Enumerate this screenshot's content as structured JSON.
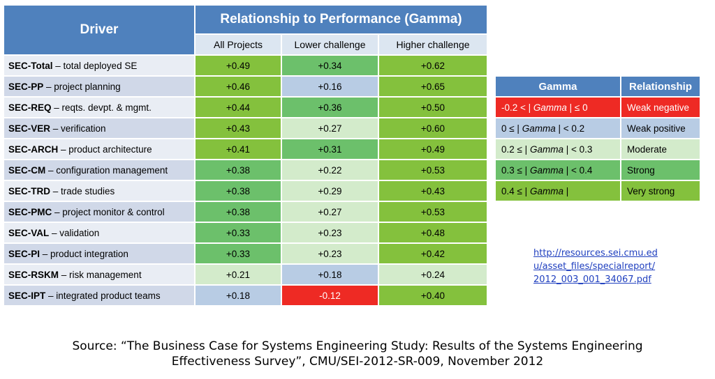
{
  "header": {
    "driver_label": "Driver",
    "relationship_label": "Relationship to Performance (Gamma)",
    "columns": [
      "All Projects",
      "Lower challenge",
      "Higher challenge"
    ]
  },
  "rows": [
    {
      "code": "SEC-Total",
      "desc": " – total deployed SE",
      "values": [
        "+0.49",
        "+0.34",
        "+0.62"
      ],
      "levels": [
        "very-strong",
        "strong",
        "very-strong"
      ]
    },
    {
      "code": "SEC-PP",
      "desc": " – project planning",
      "values": [
        "+0.46",
        "+0.16",
        "+0.65"
      ],
      "levels": [
        "very-strong",
        "weak-positive",
        "very-strong"
      ]
    },
    {
      "code": "SEC-REQ",
      "desc": " – reqts. devpt. & mgmt.",
      "values": [
        "+0.44",
        "+0.36",
        "+0.50"
      ],
      "levels": [
        "very-strong",
        "strong",
        "very-strong"
      ]
    },
    {
      "code": "SEC-VER",
      "desc": " – verification",
      "values": [
        "+0.43",
        "+0.27",
        "+0.60"
      ],
      "levels": [
        "very-strong",
        "moderate",
        "very-strong"
      ]
    },
    {
      "code": "SEC-ARCH",
      "desc": " – product architecture",
      "values": [
        "+0.41",
        "+0.31",
        "+0.49"
      ],
      "levels": [
        "very-strong",
        "strong",
        "very-strong"
      ]
    },
    {
      "code": "SEC-CM",
      "desc": " – configuration management",
      "values": [
        "+0.38",
        "+0.22",
        "+0.53"
      ],
      "levels": [
        "strong",
        "moderate",
        "very-strong"
      ]
    },
    {
      "code": "SEC-TRD",
      "desc": " – trade studies",
      "values": [
        "+0.38",
        "+0.29",
        "+0.43"
      ],
      "levels": [
        "strong",
        "moderate",
        "very-strong"
      ]
    },
    {
      "code": "SEC-PMC",
      "desc": " – project monitor & control",
      "values": [
        "+0.38",
        "+0.27",
        "+0.53"
      ],
      "levels": [
        "strong",
        "moderate",
        "very-strong"
      ]
    },
    {
      "code": "SEC-VAL",
      "desc": " – validation",
      "values": [
        "+0.33",
        "+0.23",
        "+0.48"
      ],
      "levels": [
        "strong",
        "moderate",
        "very-strong"
      ]
    },
    {
      "code": "SEC-PI",
      "desc": " – product integration",
      "values": [
        "+0.33",
        "+0.23",
        "+0.42"
      ],
      "levels": [
        "strong",
        "moderate",
        "very-strong"
      ]
    },
    {
      "code": "SEC-RSKM",
      "desc": " – risk management",
      "values": [
        "+0.21",
        "+0.18",
        "+0.24"
      ],
      "levels": [
        "moderate",
        "weak-positive",
        "moderate"
      ]
    },
    {
      "code": "SEC-IPT",
      "desc": " – integrated product teams",
      "values": [
        "+0.18",
        "-0.12",
        "+0.40"
      ],
      "levels": [
        "weak-positive",
        "weak-negative",
        "very-strong"
      ]
    }
  ],
  "legend": {
    "header_gamma": "Gamma",
    "header_relationship": "Relationship",
    "items": [
      {
        "pre": "-0.2 < | ",
        "mid": "Gamma",
        "post": " | ≤ 0",
        "label": "Weak negative",
        "level": "weak-negative"
      },
      {
        "pre": "0 ≤ | ",
        "mid": "Gamma",
        "post": " | < 0.2",
        "label": "Weak positive",
        "level": "weak-positive"
      },
      {
        "pre": "0.2 ≤ | ",
        "mid": "Gamma",
        "post": " | < 0.3",
        "label": "Moderate",
        "level": "moderate"
      },
      {
        "pre": "0.3 ≤ | ",
        "mid": "Gamma",
        "post": " | < 0.4",
        "label": "Strong",
        "level": "strong"
      },
      {
        "pre": "0.4 ≤ | ",
        "mid": "Gamma",
        "post": " |",
        "label": "Very strong",
        "level": "very-strong"
      }
    ]
  },
  "colors": {
    "weak-negative": "#ee2a24",
    "weak-positive": "#b8cce4",
    "moderate": "#d3ebcb",
    "strong": "#6cc06b",
    "very-strong": "#84c13d",
    "header": "#4f81bd"
  },
  "link": {
    "lines": [
      "http://resources.sei.cmu.ed",
      "u/asset_files/specialreport/",
      "2012_003_001_34067.pdf"
    ]
  },
  "source": {
    "line1": "Source: “The Business Case for Systems Engineering Study: Results of the Systems Engineering",
    "line2": "Effectiveness Survey”, CMU/SEI-2012-SR-009, November 2012"
  }
}
